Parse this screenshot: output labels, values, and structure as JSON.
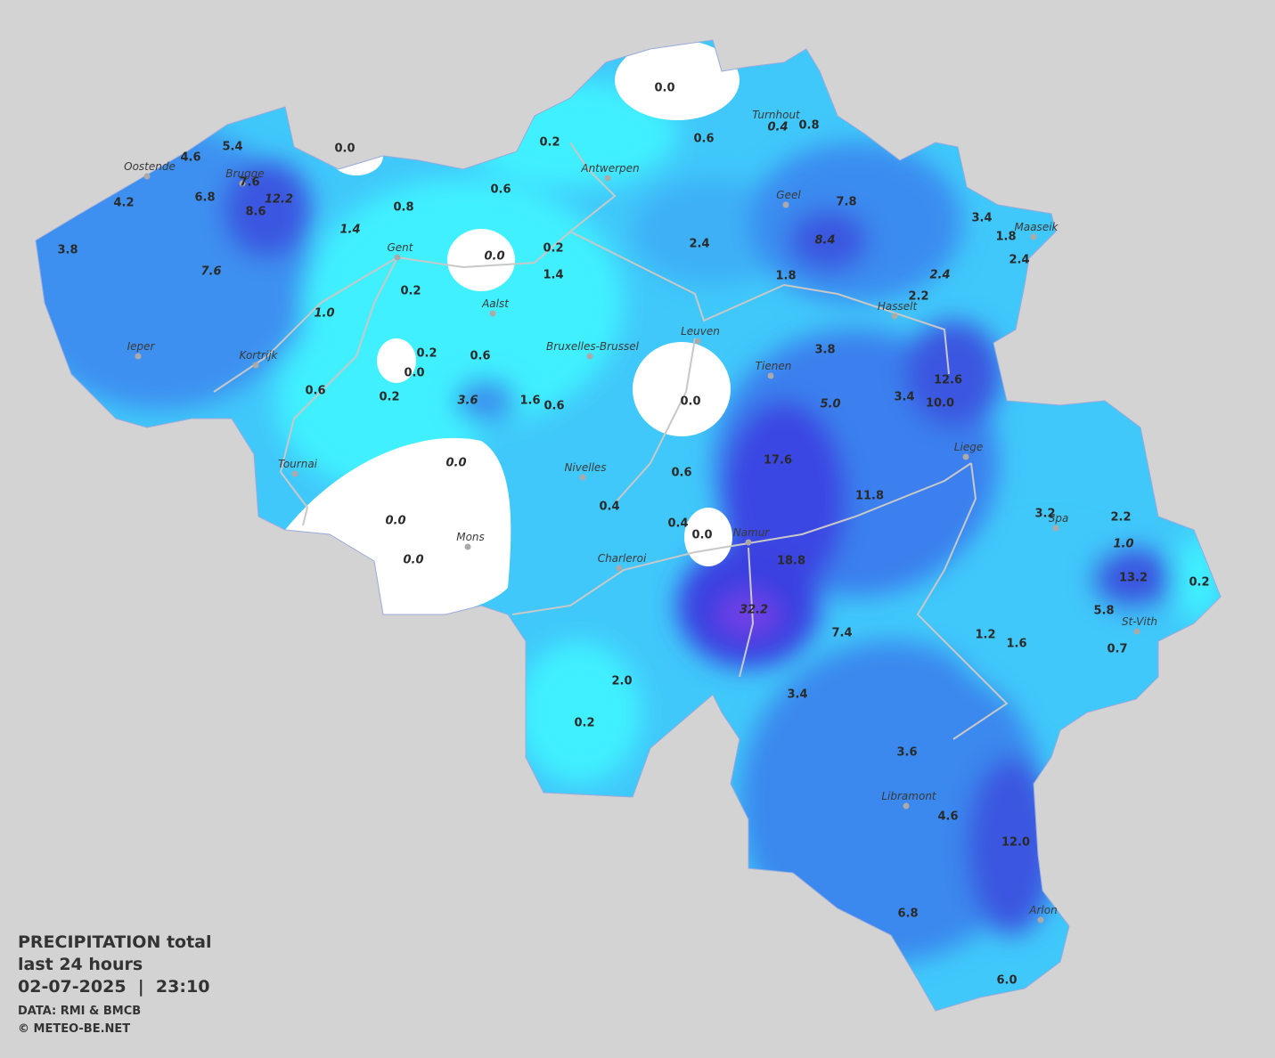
{
  "legend": {
    "title": "PRECIPITATION total",
    "period": "last 24 hours",
    "datetime": "02-07-2025  |  23:10",
    "source": "DATA: RMI & BMCB",
    "copyright": "© METEO-BE.NET"
  },
  "cities": [
    "Oostende",
    "Brugge",
    "Gent",
    "Antwerpen",
    "Turnhout",
    "Geel",
    "Maaseik",
    "Hasselt",
    "Aalst",
    "Bruxelles-Brussel",
    "Leuven",
    "Tienen",
    "Ieper",
    "Kortrijk",
    "Tournai",
    "Nivelles",
    "Liege",
    "Spa",
    "Mons",
    "Charleroi",
    "Namur",
    "St-Vith",
    "Libramont",
    "Arlon"
  ],
  "readings": [
    "0.0",
    "0.6",
    "0.4",
    "0.8",
    "0.2",
    "0.0",
    "5.4",
    "4.6",
    "7.6",
    "12.2",
    "6.8",
    "4.2",
    "8.6",
    "0.6",
    "0.8",
    "1.4",
    "7.8",
    "3.4",
    "1.8",
    "2.4",
    "8.4",
    "2.4",
    "3.8",
    "0.0",
    "0.2",
    "7.6",
    "1.4",
    "1.8",
    "2.4",
    "0.2",
    "2.2",
    "1.0",
    "0.2",
    "0.6",
    "3.8",
    "0.0",
    "12.6",
    "0.6",
    "0.2",
    "3.6",
    "1.6",
    "0.6",
    "0.0",
    "5.0",
    "3.4",
    "10.0",
    "0.0",
    "17.6",
    "0.6",
    "11.8",
    "0.4",
    "3.2",
    "2.2",
    "0.0",
    "0.4",
    "0.0",
    "1.0",
    "0.0",
    "18.8",
    "13.2",
    "0.2",
    "32.2",
    "5.8",
    "7.4",
    "1.2",
    "1.6",
    "0.7",
    "2.0",
    "3.4",
    "0.2",
    "3.6",
    "4.6",
    "12.0",
    "6.8",
    "6.0"
  ]
}
